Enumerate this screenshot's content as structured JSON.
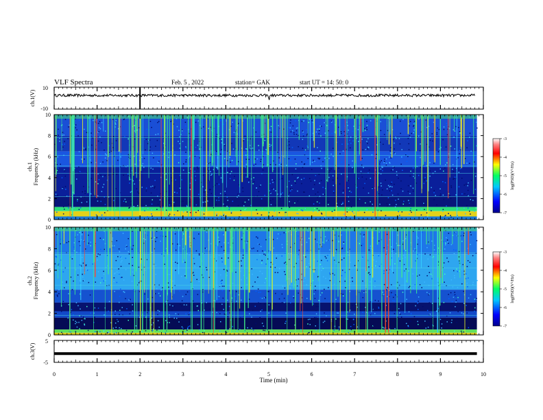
{
  "header": {
    "title": "VLF Spectra",
    "date": "Feb. 5 , 2022",
    "station": "station= GAK",
    "start_ut": "start UT =  14: 50: 0"
  },
  "chart_data": [
    {
      "type": "line",
      "panel": "waveform-ch1",
      "ylabel": "ch.1(V)",
      "ylim": [
        -10,
        10
      ],
      "yticks": [
        "10",
        "-10"
      ],
      "xlim": [
        0,
        10
      ],
      "series": [
        {
          "baseline": 2.5,
          "noise_amplitude": 0.6
        }
      ],
      "color": "#000000"
    },
    {
      "type": "heatmap",
      "panel": "spectrogram-ch1",
      "ylabel_lines": [
        "ch.1",
        "Frequency (kHz)"
      ],
      "ylim": [
        0,
        10
      ],
      "yticks": [
        "0",
        "2",
        "4",
        "6",
        "8",
        "10"
      ],
      "xlim": [
        0,
        10
      ],
      "colorbar": {
        "label": "log(PSD)(V²/Hz)",
        "range": [
          -7,
          -3
        ],
        "ticks": [
          "-3",
          "-4",
          "-5",
          "-6",
          "-7"
        ],
        "colors": [
          "#00008b",
          "#0000ff",
          "#00c8ff",
          "#00ff64",
          "#ffff00",
          "#ff0000",
          "#ff8080",
          "#ffffff"
        ]
      }
    },
    {
      "type": "heatmap",
      "panel": "spectrogram-ch2",
      "ylabel_lines": [
        "ch.2",
        "Frequency (kHz)"
      ],
      "ylim": [
        0,
        10
      ],
      "yticks": [
        "0",
        "2",
        "4",
        "6",
        "8",
        "10"
      ],
      "xlim": [
        0,
        10
      ],
      "colorbar": {
        "label": "log(PSD)(V²/Hz)",
        "range": [
          -7,
          -3
        ],
        "ticks": [
          "-3",
          "-4",
          "-5",
          "-6",
          "-7"
        ],
        "colors": [
          "#00008b",
          "#0000ff",
          "#00c8ff",
          "#00ff64",
          "#ffff00",
          "#ff0000",
          "#ff8080",
          "#ffffff"
        ]
      }
    },
    {
      "type": "line",
      "panel": "waveform-ch3",
      "ylabel": "ch.3(V)",
      "ylim": [
        -5,
        5
      ],
      "yticks": [
        "5",
        "0",
        "-5"
      ],
      "xlim": [
        0,
        10
      ],
      "series": [
        {
          "baseline": -1.0,
          "noise_amplitude": 0.0
        }
      ],
      "color": "#000000"
    }
  ],
  "xaxis": {
    "label": "Time (min)",
    "ticks": [
      "0",
      "1",
      "2",
      "3",
      "4",
      "5",
      "6",
      "7",
      "8",
      "9",
      "10"
    ]
  }
}
